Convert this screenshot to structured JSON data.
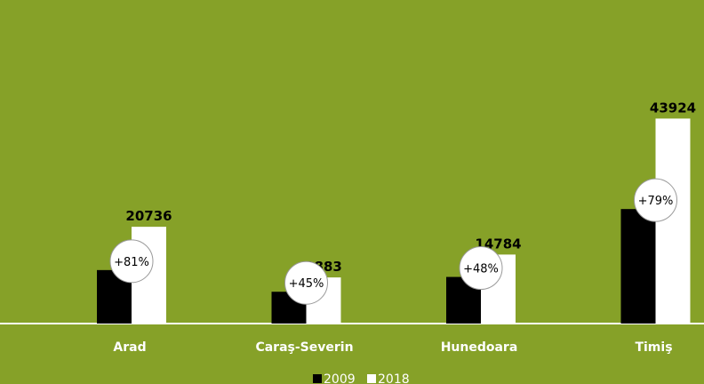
{
  "colors": {
    "background": "#86a128",
    "series_2009": "#000000",
    "series_2018": "#ffffff",
    "axis": "#ffffff"
  },
  "chart_data": {
    "type": "bar",
    "title": "",
    "xlabel": "",
    "ylabel": "",
    "categories": [
      "Arad",
      "Caraş-Severin",
      "Hunedoara",
      "Timiş"
    ],
    "series": [
      {
        "name": "2009",
        "values": [
          11460,
          6815,
          9990,
          24540
        ]
      },
      {
        "name": "2018",
        "values": [
          20736,
          9883,
          14784,
          43924
        ]
      }
    ],
    "data_labels": [
      "20736",
      "9883",
      "14784",
      "43924"
    ],
    "change_labels": [
      "+81%",
      "+45%",
      "+48%",
      "+79%"
    ],
    "ylim": [
      0,
      48000
    ],
    "grid": false,
    "legend": {
      "position": "bottom",
      "entries": [
        "2009",
        "2018"
      ]
    }
  }
}
